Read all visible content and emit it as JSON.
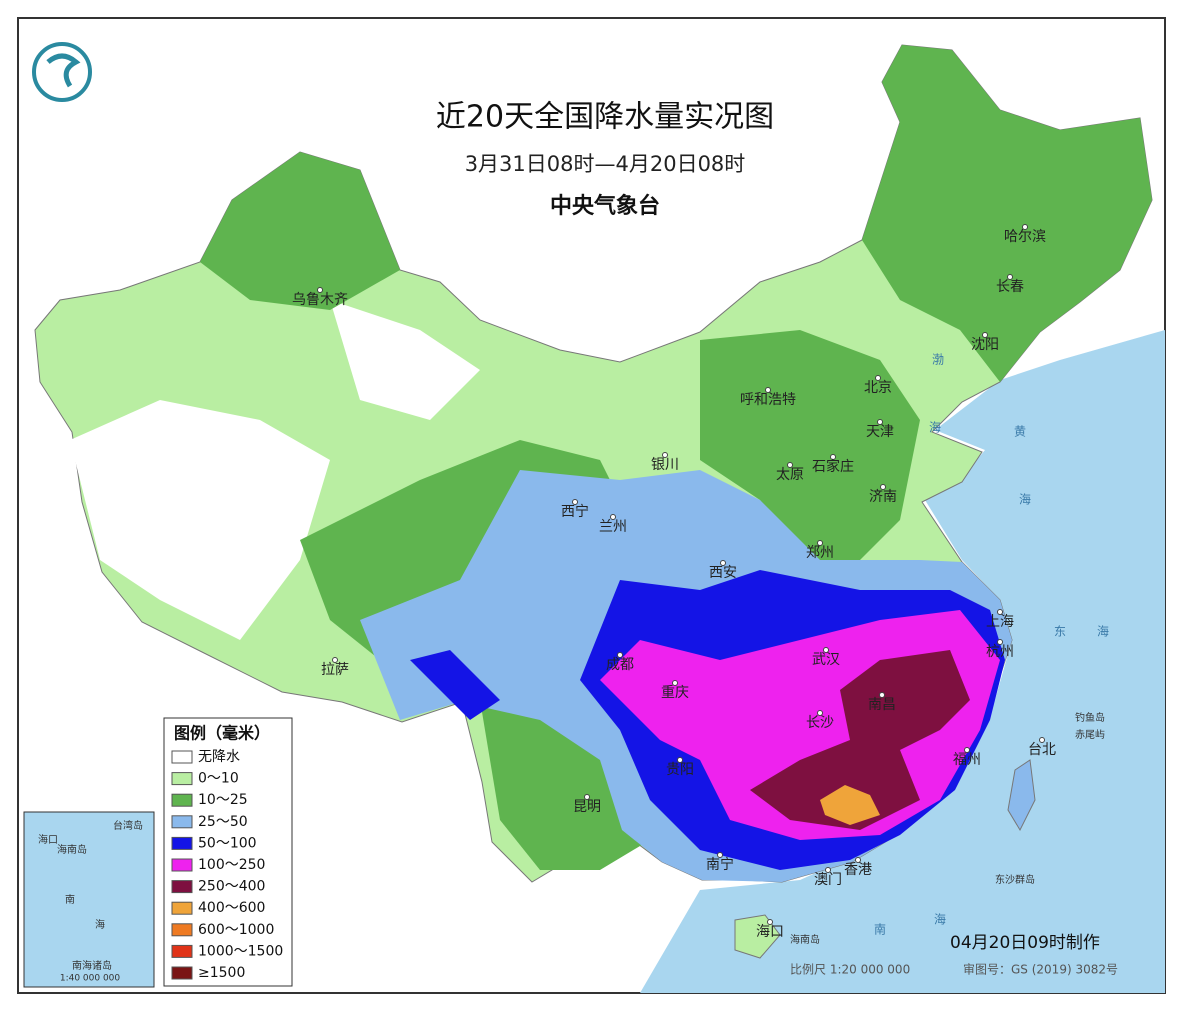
{
  "header": {
    "title": "近20天全国降水量实况图",
    "subtitle": "3月31日08时—4月20日08时",
    "agency": "中央气象台"
  },
  "legend": {
    "title": "图例（毫米）",
    "items": [
      {
        "label": "无降水",
        "color": "#ffffff"
      },
      {
        "label": "0～10",
        "color": "#b9eea2"
      },
      {
        "label": "10～25",
        "color": "#5fb44f"
      },
      {
        "label": "25～50",
        "color": "#8ab9ec"
      },
      {
        "label": "50～100",
        "color": "#1414e6"
      },
      {
        "label": "100～250",
        "color": "#ee22ee"
      },
      {
        "label": "250～400",
        "color": "#7e1040"
      },
      {
        "label": "400～600",
        "color": "#efa43a"
      },
      {
        "label": "600～1000",
        "color": "#ee7a22"
      },
      {
        "label": "1000～1500",
        "color": "#e03318"
      },
      {
        "label": "≥1500",
        "color": "#7a1414"
      }
    ]
  },
  "cities": [
    "乌鲁木齐",
    "哈尔滨",
    "长春",
    "沈阳",
    "北京",
    "呼和浩特",
    "天津",
    "银川",
    "太原",
    "石家庄",
    "济南",
    "西宁",
    "兰州",
    "郑州",
    "西安",
    "上海",
    "拉萨",
    "成都",
    "武汉",
    "杭州",
    "重庆",
    "南昌",
    "长沙",
    "福州",
    "台北",
    "贵阳",
    "昆明",
    "南宁",
    "香港",
    "澳门",
    "海口"
  ],
  "places": [
    "钓鱼岛",
    "赤尾屿",
    "东沙群岛",
    "海南岛"
  ],
  "seas": [
    "渤",
    "海",
    "黄",
    "海",
    "东",
    "海",
    "南",
    "海"
  ],
  "inset": {
    "labels": [
      "台湾岛",
      "海口",
      "海南岛",
      "南",
      "海",
      "南海诸岛"
    ],
    "scale": "1:40 000 000"
  },
  "footer": {
    "made": "04月20日09时制作",
    "scale": "比例尺  1:20 000 000",
    "approval": "审图号：GS (2019) 3082号"
  }
}
